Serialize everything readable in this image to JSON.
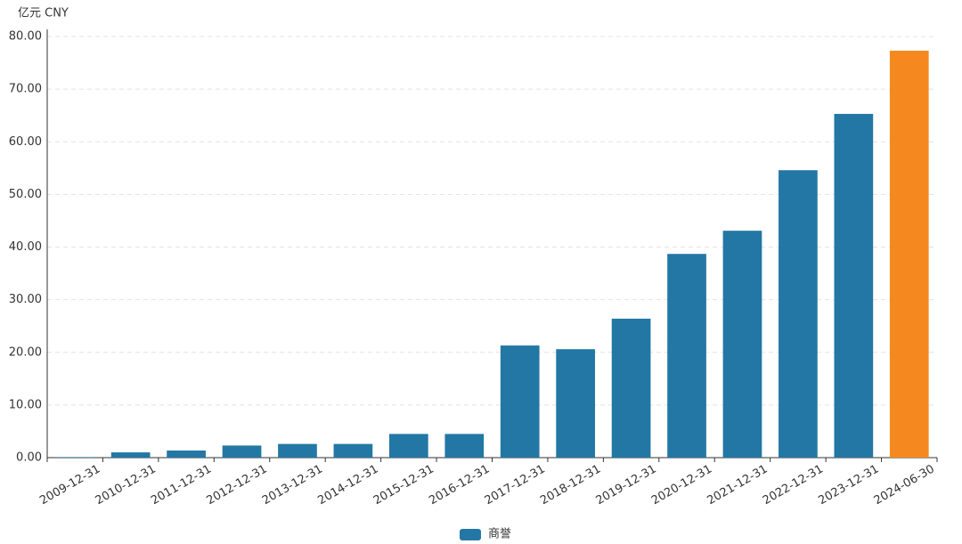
{
  "chart_data": {
    "type": "bar",
    "y_axis_title": "亿元  CNY",
    "categories": [
      "2009-12-31",
      "2010-12-31",
      "2011-12-31",
      "2012-12-31",
      "2013-12-31",
      "2014-12-31",
      "2015-12-31",
      "2016-12-31",
      "2017-12-31",
      "2018-12-31",
      "2019-12-31",
      "2020-12-31",
      "2021-12-31",
      "2022-12-31",
      "2023-12-31",
      "2024-06-30"
    ],
    "series": [
      {
        "name": "商誉",
        "color": "#2377a4",
        "values": [
          0.1,
          1.0,
          1.35,
          2.3,
          2.6,
          2.6,
          4.5,
          4.5,
          21.3,
          20.6,
          26.4,
          38.7,
          43.1,
          54.6,
          65.3,
          77.3
        ],
        "bar_colors": [
          "#2377a4",
          "#2377a4",
          "#2377a4",
          "#2377a4",
          "#2377a4",
          "#2377a4",
          "#2377a4",
          "#2377a4",
          "#2377a4",
          "#2377a4",
          "#2377a4",
          "#2377a4",
          "#2377a4",
          "#2377a4",
          "#2377a4",
          "#f5891f"
        ]
      }
    ],
    "ylim": [
      0,
      80
    ],
    "yticks": [
      {
        "value": 0,
        "label": "0.00"
      },
      {
        "value": 10,
        "label": "10.00"
      },
      {
        "value": 20,
        "label": "20.00"
      },
      {
        "value": 30,
        "label": "30.00"
      },
      {
        "value": 40,
        "label": "40.00"
      },
      {
        "value": 50,
        "label": "50.00"
      },
      {
        "value": 60,
        "label": "60.00"
      },
      {
        "value": 70,
        "label": "70.00"
      },
      {
        "value": 80,
        "label": "80.00"
      }
    ],
    "grid": true,
    "legend": "bottom"
  }
}
